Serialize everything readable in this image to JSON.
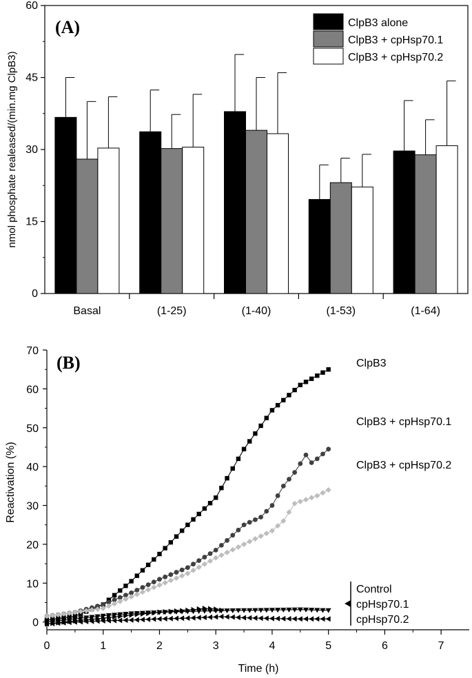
{
  "chart_data": [
    {
      "type": "bar",
      "panel_label": "(A)",
      "title": "",
      "xlabel": "",
      "ylabel": "nmol phosphate realeased/(min.mg ClpB3)",
      "ylim": [
        0,
        60
      ],
      "yticks": [
        "0",
        "15",
        "30",
        "45",
        "60"
      ],
      "categories": [
        "Basal",
        "(1-25)",
        "(1-40)",
        "(1-53)",
        "(1-64)"
      ],
      "legend_position": "top-right",
      "series": [
        {
          "name": "ClpB3 alone",
          "color": "#000000",
          "values": [
            36.7,
            33.7,
            37.9,
            19.6,
            29.7
          ],
          "errors": [
            8.3,
            8.7,
            11.9,
            7.2,
            10.5
          ]
        },
        {
          "name": "ClpB3 + cpHsp70.1",
          "color": "#7f7f7f",
          "values": [
            28.0,
            30.2,
            34.0,
            23.1,
            28.9
          ],
          "errors": [
            12.0,
            7.1,
            11.0,
            5.1,
            7.3
          ]
        },
        {
          "name": "ClpB3 + cpHsp70.2",
          "color": "#ffffff",
          "values": [
            30.3,
            30.5,
            33.3,
            22.2,
            30.8
          ],
          "errors": [
            10.7,
            11.0,
            12.7,
            6.8,
            13.5
          ]
        }
      ]
    },
    {
      "type": "line",
      "panel_label": "(B)",
      "title": "",
      "xlabel": "Time (h)",
      "ylabel": "Reactivation (%)",
      "xlim": [
        0,
        7.5
      ],
      "ylim": [
        -2,
        70
      ],
      "xticks": [
        "0",
        "1",
        "2",
        "3",
        "4",
        "5",
        "6",
        "7"
      ],
      "yticks": [
        "0",
        "10",
        "20",
        "30",
        "40",
        "50",
        "60",
        "70"
      ],
      "series": [
        {
          "name": "ClpB3",
          "label": "ClpB3",
          "color": "#000000",
          "marker": "square",
          "x": [
            0,
            0.5,
            1,
            1.5,
            2,
            2.5,
            3,
            3.5,
            4,
            4.5,
            5
          ],
          "y": [
            0.5,
            1.5,
            4.5,
            10.5,
            17.5,
            25,
            32,
            44.5,
            54.5,
            61,
            65
          ]
        },
        {
          "name": "ClpB3 + cpHsp70.1",
          "label": "ClpB3 + cpHsp70.1",
          "color": "#404040",
          "marker": "circle",
          "x": [
            0,
            0.5,
            1,
            1.5,
            2,
            2.5,
            3,
            3.2,
            3.5,
            3.8,
            4,
            4.2,
            4.4,
            4.6,
            4.7,
            4.8,
            5
          ],
          "y": [
            1.5,
            2.5,
            4.5,
            7.5,
            11,
            14,
            18.5,
            21,
            25,
            27,
            30,
            35,
            38.5,
            43,
            41,
            42,
            44.5
          ]
        },
        {
          "name": "ClpB3 + cpHsp70.2",
          "label": "ClpB3 + cpHsp70.2",
          "color": "#bdbdbd",
          "marker": "diamond",
          "x": [
            0,
            0.5,
            1,
            1.5,
            2,
            2.5,
            3,
            3.5,
            4,
            4.2,
            4.4,
            4.6,
            4.8,
            5
          ],
          "y": [
            1.5,
            2.5,
            3.5,
            6.5,
            9.5,
            12.5,
            16.5,
            20,
            23.5,
            26,
            30.5,
            31.5,
            32.5,
            34
          ]
        },
        {
          "name": "Control",
          "color": "#000000",
          "marker": "triangle-down",
          "x": [
            0,
            0.5,
            1,
            1.5,
            2,
            2.5,
            3,
            3.5,
            4,
            4.5,
            5
          ],
          "y": [
            0,
            0.8,
            1.6,
            2.2,
            2.5,
            2.7,
            2.9,
            3,
            3.1,
            3.2,
            3
          ]
        },
        {
          "name": "cpHsp70.1",
          "color": "#000000",
          "marker": "triangle-right",
          "x": [
            0,
            0.5,
            1,
            1.5,
            2,
            2.5,
            2.8,
            3,
            3.1
          ],
          "y": [
            -0.5,
            0.3,
            1,
            1.8,
            2.5,
            3,
            3.5,
            3.3,
            3
          ]
        },
        {
          "name": "cpHsp70.2",
          "color": "#000000",
          "marker": "triangle-left",
          "x": [
            0,
            0.5,
            1,
            1.5,
            2,
            2.5,
            3,
            3.1,
            3.5,
            4,
            4.5,
            5
          ],
          "y": [
            -0.5,
            0,
            0.3,
            0.5,
            0.8,
            1,
            1.3,
            1.4,
            1.1,
            0.9,
            0.8,
            0.8
          ]
        }
      ],
      "bracket_labels": [
        "Control",
        "cpHsp70.1",
        "cpHsp70.2"
      ]
    }
  ]
}
